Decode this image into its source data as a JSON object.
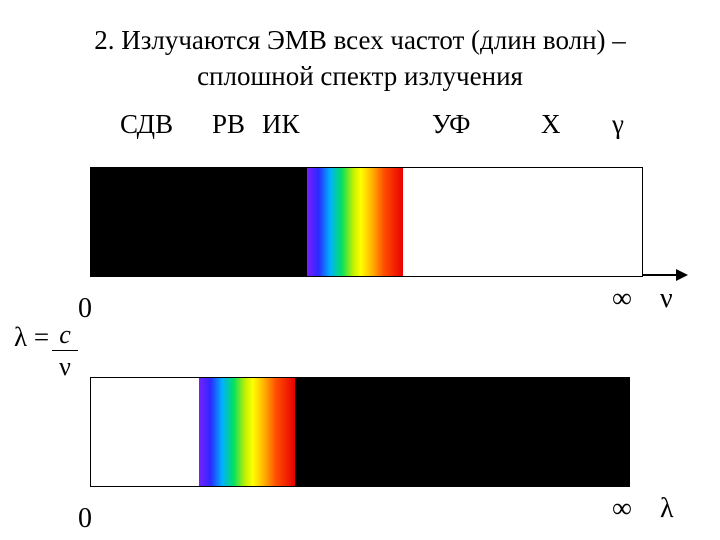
{
  "title": {
    "line1": "2. Излучаются ЭМВ всех частот (длин волн) –",
    "line2": "сплошной спектр излучения"
  },
  "bands": {
    "sdv": "СДВ",
    "rv": "РВ",
    "ik": "ИК",
    "uf": "УФ",
    "x": "X",
    "gamma": "γ"
  },
  "axis1": {
    "zero": "0",
    "inf": "∞",
    "var": "ν"
  },
  "axis2": {
    "zero": "0",
    "inf": "∞",
    "var": "λ"
  },
  "formula": {
    "lhs": "λ =",
    "num": "c",
    "den": "ν"
  },
  "colors": {
    "dark": "#000000",
    "light": "#ffffff"
  }
}
